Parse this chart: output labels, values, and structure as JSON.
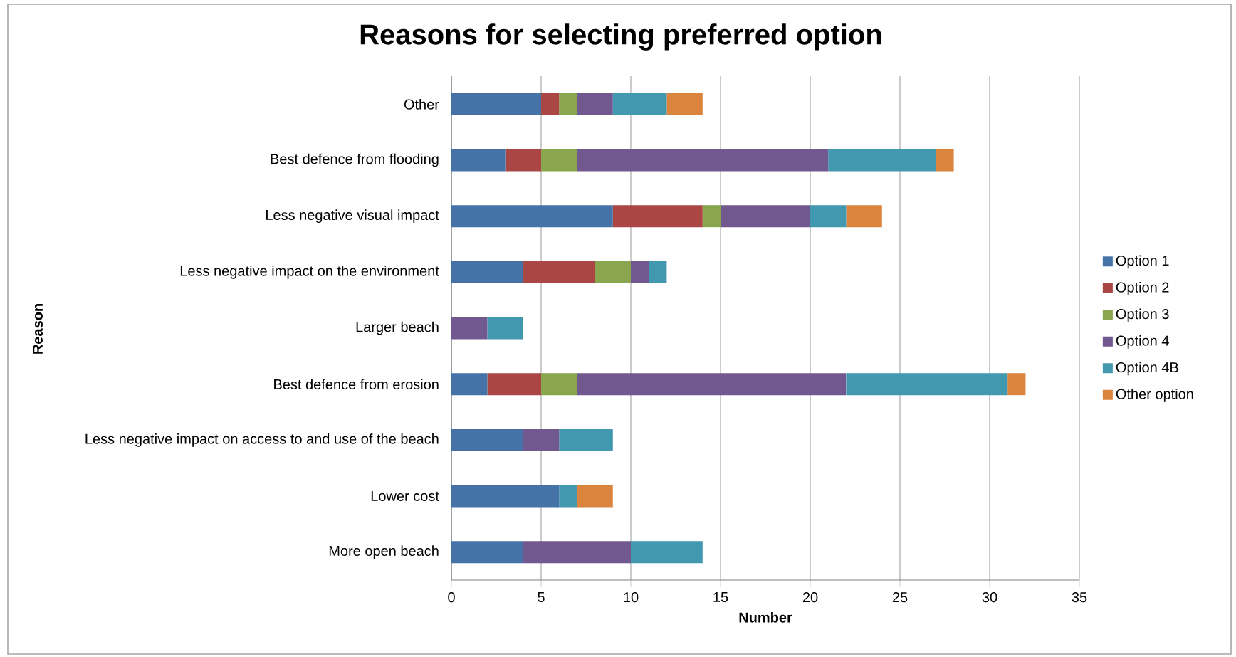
{
  "chart_data": {
    "type": "bar",
    "orientation": "horizontal",
    "stacked": true,
    "title": "Reasons for selecting preferred option",
    "xlabel": "Number",
    "ylabel": "Reason",
    "categories": [
      "Other",
      "Best defence from flooding",
      "Less negative visual impact",
      "Less negative impact on the environment",
      "Larger beach",
      "Best defence from erosion",
      "Less negative impact on access to and use of the beach",
      "Lower cost",
      "More open beach"
    ],
    "series": [
      {
        "name": "Option 1",
        "color": "#4572a7",
        "values": [
          5,
          3,
          9,
          4,
          null,
          2,
          4,
          6,
          4
        ]
      },
      {
        "name": "Option 2",
        "color": "#aa4643",
        "values": [
          1,
          2,
          5,
          4,
          null,
          3,
          null,
          null,
          null
        ]
      },
      {
        "name": "Option 3",
        "color": "#89a54e",
        "values": [
          1,
          2,
          1,
          2,
          null,
          2,
          null,
          null,
          null
        ]
      },
      {
        "name": "Option 4",
        "color": "#71588f",
        "values": [
          2,
          14,
          5,
          1,
          2,
          15,
          2,
          null,
          6
        ]
      },
      {
        "name": "Option 4B",
        "color": "#4198af",
        "values": [
          3,
          6,
          2,
          1,
          2,
          9,
          3,
          1,
          4
        ]
      },
      {
        "name": "Other option",
        "color": "#db843d",
        "values": [
          2,
          1,
          2,
          null,
          null,
          1,
          null,
          2,
          null
        ]
      }
    ],
    "xlim": [
      0,
      35
    ],
    "xticks": [
      0,
      5,
      10,
      15,
      20,
      25,
      30,
      35
    ],
    "grid": "x",
    "legend": "right"
  }
}
